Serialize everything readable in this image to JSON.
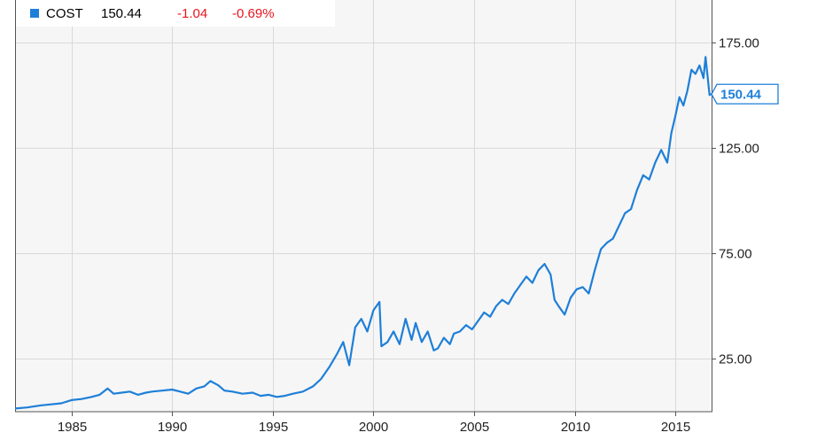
{
  "legend": {
    "symbol": "COST",
    "last": "150.44",
    "change": "-1.04",
    "change_pct": "-0.69%",
    "color": "#1e7fd8",
    "down_color": "#e8141e"
  },
  "chart_data": {
    "type": "line",
    "title": "",
    "xlabel": "",
    "ylabel": "",
    "grid": true,
    "xlim": [
      1982.2,
      2016.8
    ],
    "ylim": [
      0,
      195
    ],
    "x_ticks": [
      1985,
      1990,
      1995,
      2000,
      2005,
      2010,
      2015
    ],
    "x_tick_labels": [
      "1985",
      "1990",
      "1995",
      "2000",
      "2005",
      "2010",
      "2015"
    ],
    "y_ticks": [
      25,
      75,
      125,
      175
    ],
    "y_tick_labels": [
      "25.00",
      "75.00",
      "125.00",
      "175.00"
    ],
    "last_value_label": "150.44",
    "series": [
      {
        "name": "COST",
        "color": "#1e7fd8",
        "x": [
          1982.2,
          1982.8,
          1983.5,
          1984.0,
          1984.5,
          1985.0,
          1985.5,
          1986.0,
          1986.4,
          1986.8,
          1987.1,
          1987.5,
          1987.9,
          1988.3,
          1988.7,
          1989.0,
          1989.5,
          1990.0,
          1990.4,
          1990.8,
          1991.2,
          1991.6,
          1991.9,
          1992.3,
          1992.6,
          1993.0,
          1993.5,
          1994.0,
          1994.4,
          1994.8,
          1995.2,
          1995.6,
          1996.0,
          1996.5,
          1997.0,
          1997.4,
          1997.8,
          1998.2,
          1998.5,
          1998.8,
          1999.1,
          1999.4,
          1999.7,
          2000.0,
          2000.3,
          2000.4,
          2000.7,
          2001.0,
          2001.3,
          2001.6,
          2001.9,
          2002.1,
          2002.4,
          2002.7,
          2003.0,
          2003.2,
          2003.5,
          2003.8,
          2004.0,
          2004.3,
          2004.6,
          2004.9,
          2005.2,
          2005.5,
          2005.8,
          2006.1,
          2006.4,
          2006.7,
          2007.0,
          2007.3,
          2007.6,
          2007.9,
          2008.2,
          2008.5,
          2008.8,
          2009.0,
          2009.2,
          2009.5,
          2009.8,
          2010.1,
          2010.4,
          2010.7,
          2011.0,
          2011.3,
          2011.6,
          2011.9,
          2012.2,
          2012.5,
          2012.8,
          2013.1,
          2013.4,
          2013.7,
          2014.0,
          2014.3,
          2014.6,
          2014.8,
          2015.0,
          2015.2,
          2015.4,
          2015.6,
          2015.8,
          2016.0,
          2016.2,
          2016.4,
          2016.5,
          2016.7,
          2016.8
        ],
        "values": [
          1.5,
          2.0,
          3.0,
          3.5,
          4.0,
          5.5,
          6.0,
          7.0,
          8.0,
          11.0,
          8.5,
          9.0,
          9.5,
          8.0,
          9.0,
          9.5,
          10.0,
          10.5,
          9.5,
          8.5,
          11.0,
          12.0,
          14.5,
          12.5,
          10.0,
          9.5,
          8.5,
          9.0,
          7.5,
          8.0,
          7.0,
          7.5,
          8.5,
          9.5,
          12.0,
          15.5,
          21.0,
          27.5,
          33.0,
          22.0,
          40.0,
          44.0,
          38.0,
          48.0,
          52.0,
          31.0,
          33.0,
          38.0,
          32.0,
          44.0,
          34.0,
          42.0,
          33.0,
          38.0,
          29.0,
          30.0,
          35.0,
          32.0,
          37.0,
          38.0,
          41.0,
          39.0,
          43.0,
          47.0,
          45.0,
          50.0,
          53.0,
          51.0,
          56.0,
          60.0,
          64.0,
          61.0,
          67.0,
          70.0,
          65.0,
          53.0,
          50.0,
          46.0,
          54.0,
          58.0,
          59.0,
          56.0,
          67.0,
          77.0,
          80.0,
          82.0,
          88.0,
          94.0,
          96.0,
          105.0,
          112.0,
          110.0,
          118.0,
          124.0,
          118.0,
          132.0,
          140.0,
          149.0,
          145.0,
          152.0,
          162.0,
          160.0,
          164.0,
          158.0,
          168.0,
          150.0,
          150.44
        ]
      }
    ]
  }
}
